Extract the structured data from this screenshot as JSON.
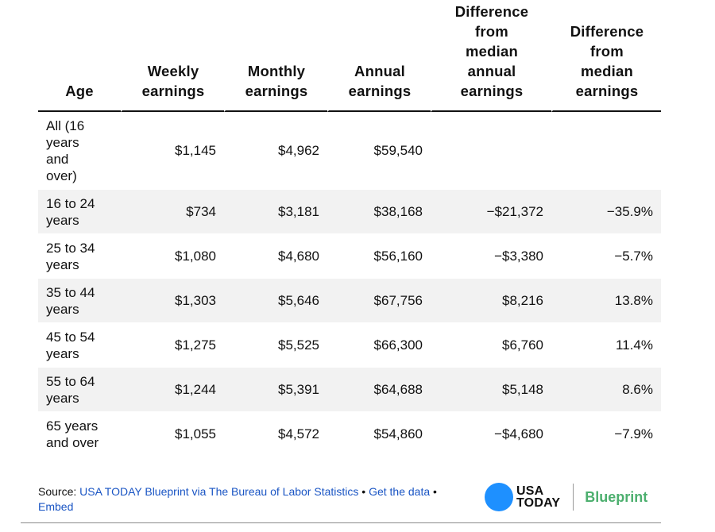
{
  "table": {
    "headers": [
      "Age",
      "Weekly earnings",
      "Monthly earnings",
      "Annual earnings",
      "Difference from median annual earnings",
      "Difference from median earnings"
    ],
    "header_lines": [
      [
        "Age"
      ],
      [
        "Weekly",
        "earnings"
      ],
      [
        "Monthly",
        "earnings"
      ],
      [
        "Annual",
        "earnings"
      ],
      [
        "Difference",
        "from",
        "median",
        "annual",
        "earnings"
      ],
      [
        "Difference",
        "from",
        "median",
        "earnings"
      ]
    ],
    "rows": [
      {
        "age": "All (16 years and over)",
        "age_lines": [
          "All (16",
          "years",
          "and",
          "over)"
        ],
        "weekly": "$1,145",
        "monthly": "$4,962",
        "annual": "$59,540",
        "diff_annual": "",
        "diff_pct": ""
      },
      {
        "age": "16 to 24 years",
        "age_lines": [
          "16 to 24",
          "years"
        ],
        "weekly": "$734",
        "monthly": "$3,181",
        "annual": "$38,168",
        "diff_annual": "−$21,372",
        "diff_pct": "−35.9%"
      },
      {
        "age": "25 to 34 years",
        "age_lines": [
          "25 to 34",
          "years"
        ],
        "weekly": "$1,080",
        "monthly": "$4,680",
        "annual": "$56,160",
        "diff_annual": "−$3,380",
        "diff_pct": "−5.7%"
      },
      {
        "age": "35 to 44 years",
        "age_lines": [
          "35 to 44",
          "years"
        ],
        "weekly": "$1,303",
        "monthly": "$5,646",
        "annual": "$67,756",
        "diff_annual": "$8,216",
        "diff_pct": "13.8%"
      },
      {
        "age": "45 to 54 years",
        "age_lines": [
          "45 to 54",
          "years"
        ],
        "weekly": "$1,275",
        "monthly": "$5,525",
        "annual": "$66,300",
        "diff_annual": "$6,760",
        "diff_pct": "11.4%"
      },
      {
        "age": "55 to 64 years",
        "age_lines": [
          "55 to 64",
          "years"
        ],
        "weekly": "$1,244",
        "monthly": "$5,391",
        "annual": "$64,688",
        "diff_annual": "$5,148",
        "diff_pct": "8.6%"
      },
      {
        "age": "65 years and over",
        "age_lines": [
          "65 years",
          "and over"
        ],
        "weekly": "$1,055",
        "monthly": "$4,572",
        "annual": "$54,860",
        "diff_annual": "−$4,680",
        "diff_pct": "−7.9%"
      }
    ]
  },
  "footer": {
    "source_prefix": "Source: ",
    "source_link": "USA TODAY Blueprint via The Bureau of Labor Statistics",
    "sep1": " • ",
    "data_link": "Get the data",
    "sep2": " • ",
    "embed_link": "Embed"
  },
  "logo": {
    "usa": "USA",
    "today": "TODAY",
    "blueprint": "Blueprint"
  },
  "colors": {
    "link": "#1a55c4",
    "logo_dot": "#1e90ff",
    "blueprint": "#4caf6e",
    "row_shade": "#f2f2f2"
  }
}
